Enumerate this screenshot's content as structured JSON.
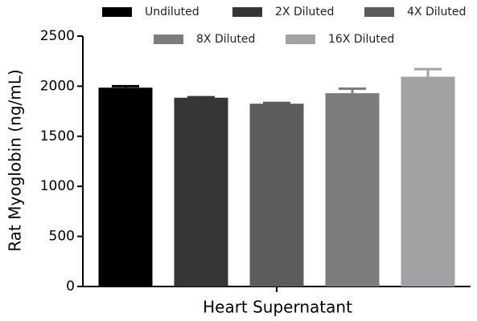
{
  "chart_data": {
    "type": "bar",
    "xlabel": "Heart Supernatant",
    "ylabel": "Rat Myoglobin (ng/mL)",
    "categories": [
      "Heart Supernatant"
    ],
    "series": [
      {
        "name": "Undiluted",
        "color": "#000000",
        "values": [
          1985
        ],
        "errors": [
          15
        ]
      },
      {
        "name": "2X Diluted",
        "color": "#363636",
        "values": [
          1885
        ],
        "errors": [
          5
        ]
      },
      {
        "name": "4X Diluted",
        "color": "#5c5c5c",
        "values": [
          1825
        ],
        "errors": [
          8
        ]
      },
      {
        "name": "8X Diluted",
        "color": "#7c7c7c",
        "values": [
          1930
        ],
        "errors": [
          45
        ]
      },
      {
        "name": "16X Diluted",
        "color": "#a2a2a5",
        "values": [
          2095
        ],
        "errors": [
          75
        ]
      }
    ],
    "ylim": [
      0,
      2500
    ],
    "yticks": [
      0,
      500,
      1000,
      1500,
      2000,
      2500
    ]
  }
}
